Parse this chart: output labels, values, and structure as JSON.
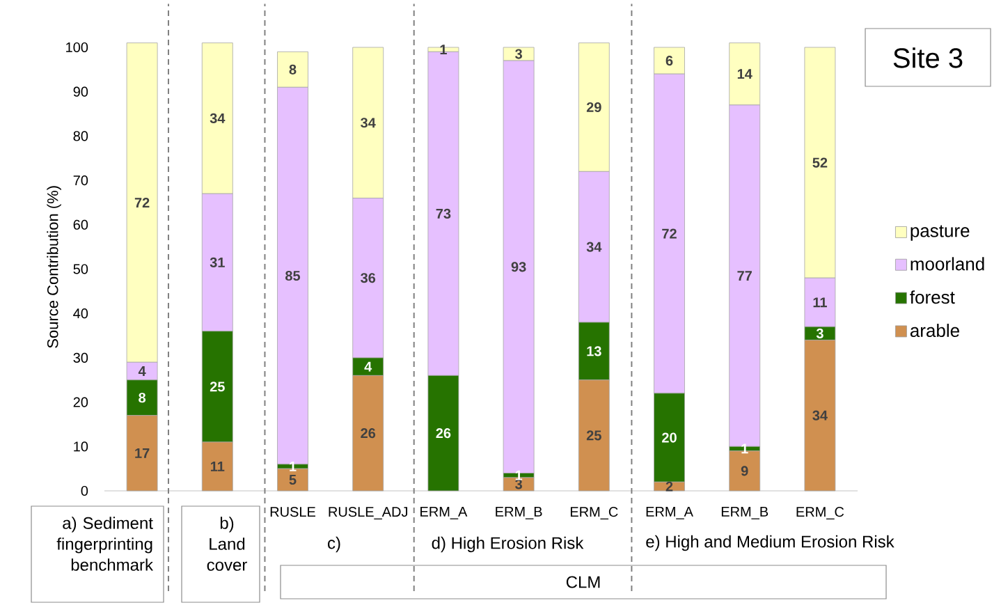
{
  "chart_data": {
    "type": "bar",
    "stacked": true,
    "categories": [
      null,
      null,
      "RUSLE",
      "RUSLE_ADJ",
      "ERM_A",
      "ERM_B",
      "ERM_C",
      "ERM_A",
      "ERM_B",
      "ERM_C"
    ],
    "series": [
      {
        "name": "arable",
        "color": "#d09050",
        "values": [
          17,
          11,
          5,
          26,
          0,
          3,
          25,
          2,
          9,
          34
        ],
        "value_labels": [
          "17",
          "11",
          "5",
          "26",
          null,
          "3",
          "25",
          "2",
          "9",
          "34"
        ]
      },
      {
        "name": "forest",
        "color": "#267300",
        "values": [
          8,
          25,
          1,
          4,
          26,
          1,
          13,
          20,
          1,
          3
        ],
        "value_labels": [
          "8",
          "25",
          "1",
          "4",
          "26",
          "1",
          "13",
          "20",
          "1",
          "3"
        ]
      },
      {
        "name": "moorland",
        "color": "#e6c0ff",
        "values": [
          4,
          31,
          85,
          36,
          73,
          93,
          34,
          72,
          77,
          11
        ],
        "value_labels": [
          "4",
          "31",
          "85",
          "36",
          "73",
          "93",
          "34",
          "72",
          "77",
          "11"
        ]
      },
      {
        "name": "pasture",
        "color": "#ffffc0",
        "values": [
          72,
          34,
          8,
          34,
          1,
          3,
          29,
          6,
          14,
          52
        ],
        "value_labels": [
          "72",
          "34",
          "8",
          "34",
          "1",
          "3",
          "29",
          "6",
          "14",
          "52"
        ]
      }
    ],
    "ylim": [
      0,
      101
    ],
    "yticks": [
      0,
      10,
      20,
      30,
      40,
      50,
      60,
      70,
      80,
      90,
      100
    ],
    "ylabel": "Source Contribution (%)",
    "legend": "right",
    "annotations": [
      "Site 3",
      "a) Sediment fingerprinting benchmark",
      "b) Land cover",
      "c)",
      "d) High Erosion Risk",
      "e) High and Medium Erosion Risk",
      "CLM"
    ]
  }
}
